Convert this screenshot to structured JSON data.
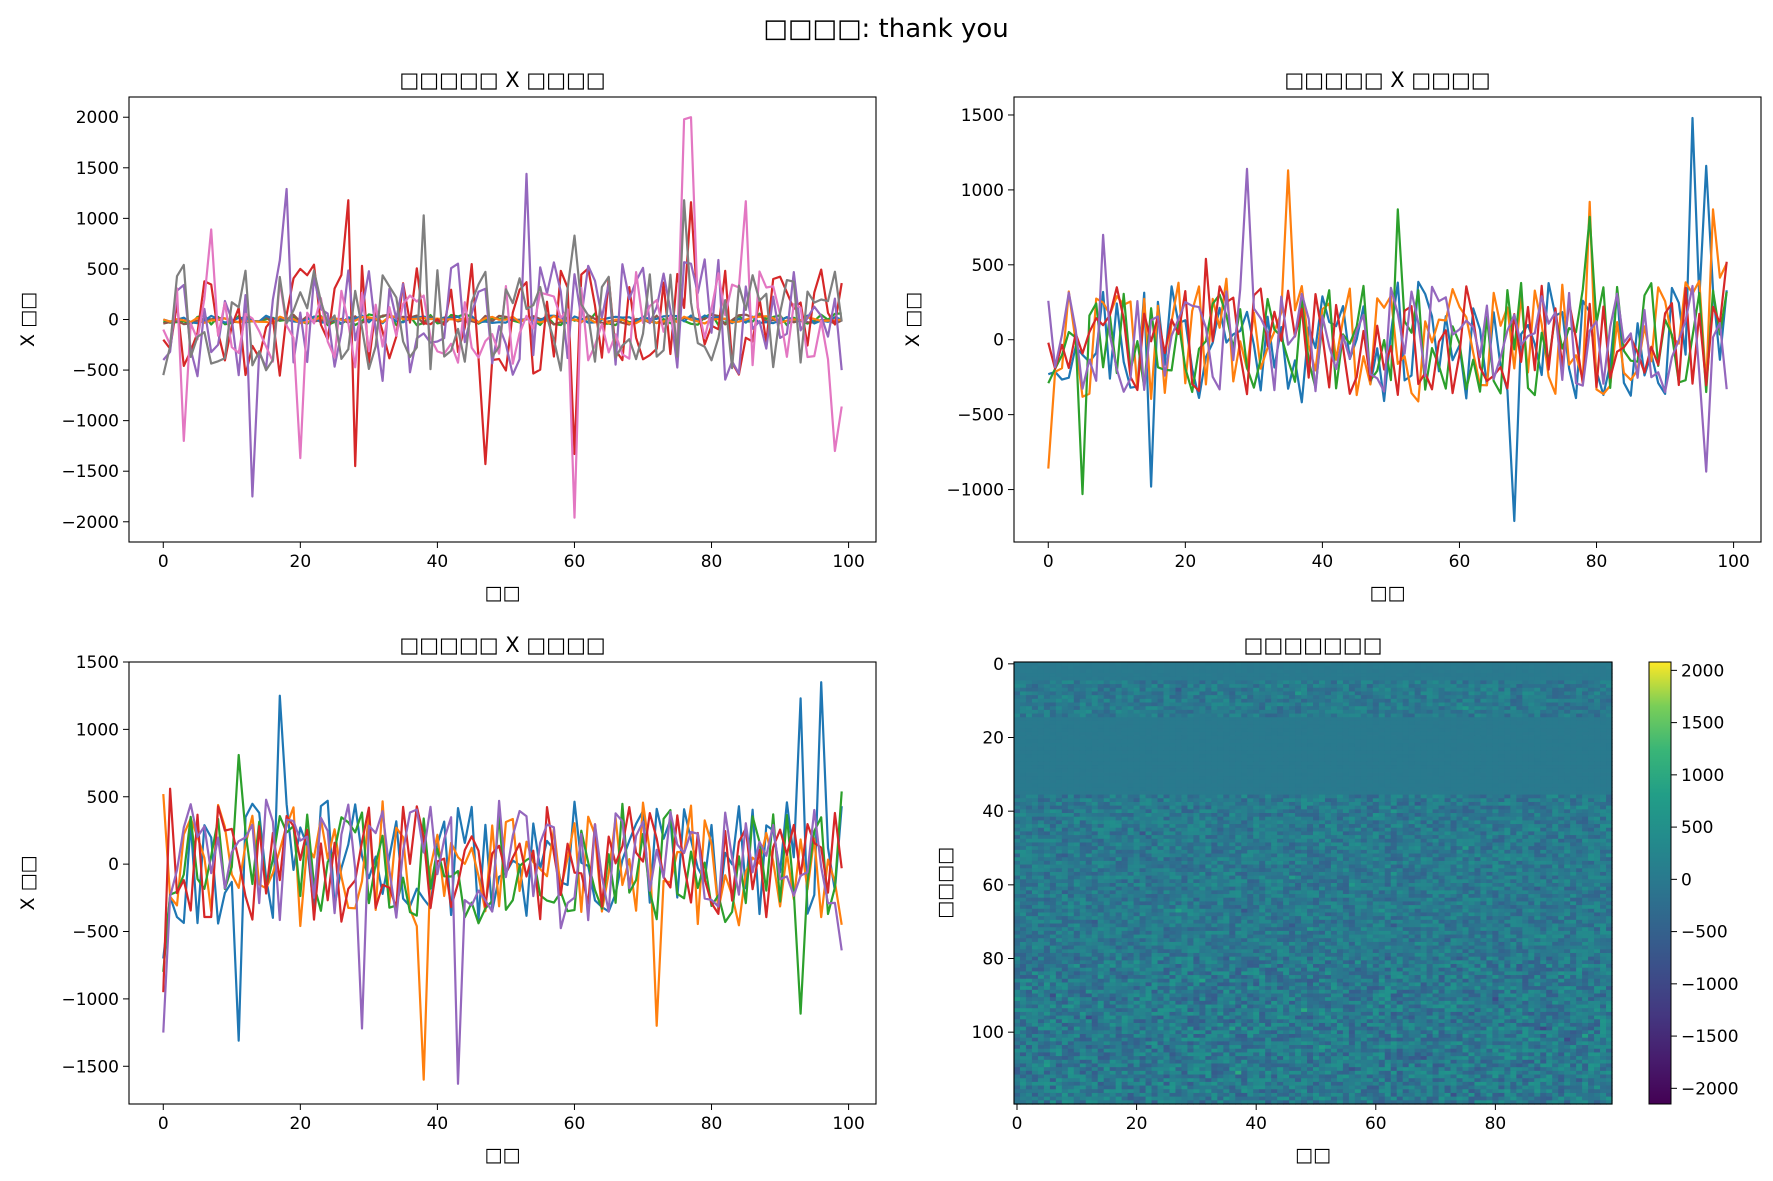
{
  "figure": {
    "suptitle": "□□□□: thank you",
    "colors": {
      "C0": "#1f77b4",
      "C1": "#ff7f0e",
      "C2": "#2ca02c",
      "C3": "#d62728",
      "C4": "#9467bd",
      "C5": "#8c564b",
      "C6": "#e377c2",
      "C7": "#7f7f7f"
    }
  },
  "chart_data": [
    {
      "type": "line",
      "title": "□□□□□ X □□□□",
      "xlabel": "□□",
      "ylabel": "X □□",
      "xlim": [
        -5,
        104
      ],
      "ylim": [
        -2200,
        2200
      ],
      "xticks": [
        0,
        20,
        40,
        60,
        80,
        100
      ],
      "yticks": [
        -2000,
        -1500,
        -1000,
        -500,
        0,
        500,
        1000,
        1500,
        2000
      ],
      "grid": false,
      "legend": "none",
      "n_points": 100,
      "series": [
        {
          "color": "#2ca02c",
          "amp": 60,
          "seed": 11,
          "anchors": [
            [
              0,
              -20
            ],
            [
              50,
              10
            ],
            [
              99,
              60
            ]
          ]
        },
        {
          "color": "#8c564b",
          "amp": 50,
          "seed": 12,
          "anchors": [
            [
              0,
              -40
            ],
            [
              60,
              0
            ],
            [
              99,
              -10
            ]
          ]
        },
        {
          "color": "#1f77b4",
          "amp": 40,
          "seed": 13,
          "anchors": [
            [
              0,
              0
            ],
            [
              99,
              0
            ]
          ]
        },
        {
          "color": "#ff7f0e",
          "amp": 40,
          "seed": 14,
          "anchors": [
            [
              0,
              0
            ],
            [
              99,
              0
            ]
          ]
        },
        {
          "color": "#d62728",
          "amp": 560,
          "seed": 15,
          "anchors": [
            [
              0,
              -200
            ],
            [
              27,
              1180
            ],
            [
              28,
              -1450
            ],
            [
              47,
              -1430
            ],
            [
              60,
              -1330
            ],
            [
              77,
              1160
            ],
            [
              99,
              360
            ]
          ]
        },
        {
          "color": "#9467bd",
          "amp": 620,
          "seed": 16,
          "anchors": [
            [
              0,
              -400
            ],
            [
              13,
              -1750
            ],
            [
              18,
              1290
            ],
            [
              53,
              1440
            ],
            [
              99,
              -500
            ]
          ]
        },
        {
          "color": "#e377c2",
          "amp": 480,
          "seed": 17,
          "anchors": [
            [
              0,
              -100
            ],
            [
              3,
              -1200
            ],
            [
              7,
              890
            ],
            [
              20,
              -1370
            ],
            [
              60,
              -1960
            ],
            [
              76,
              1980
            ],
            [
              77,
              2000
            ],
            [
              85,
              1170
            ],
            [
              98,
              -1300
            ],
            [
              99,
              -860
            ]
          ]
        },
        {
          "color": "#7f7f7f",
          "amp": 520,
          "seed": 18,
          "anchors": [
            [
              0,
              -550
            ],
            [
              3,
              540
            ],
            [
              38,
              1030
            ],
            [
              60,
              830
            ],
            [
              76,
              1180
            ],
            [
              99,
              -20
            ]
          ]
        }
      ]
    },
    {
      "type": "line",
      "title": "□□□□□ X □□□□",
      "xlabel": "□□",
      "ylabel": "X □□",
      "xlim": [
        -5,
        104
      ],
      "ylim": [
        -1350,
        1620
      ],
      "xticks": [
        0,
        20,
        40,
        60,
        80,
        100
      ],
      "yticks": [
        -1000,
        -500,
        0,
        500,
        1000,
        1500
      ],
      "grid": false,
      "legend": "none",
      "n_points": 100,
      "series": [
        {
          "color": "#1f77b4",
          "amp": 420,
          "seed": 21,
          "anchors": [
            [
              0,
              -230
            ],
            [
              15,
              -980
            ],
            [
              68,
              -1210
            ],
            [
              94,
              1480
            ],
            [
              96,
              1160
            ],
            [
              99,
              330
            ]
          ]
        },
        {
          "color": "#ff7f0e",
          "amp": 420,
          "seed": 22,
          "anchors": [
            [
              0,
              -860
            ],
            [
              35,
              1130
            ],
            [
              79,
              920
            ],
            [
              97,
              870
            ],
            [
              99,
              510
            ]
          ]
        },
        {
          "color": "#2ca02c",
          "amp": 380,
          "seed": 23,
          "anchors": [
            [
              0,
              -290
            ],
            [
              5,
              -1030
            ],
            [
              51,
              870
            ],
            [
              79,
              820
            ],
            [
              99,
              320
            ]
          ]
        },
        {
          "color": "#d62728",
          "amp": 380,
          "seed": 24,
          "anchors": [
            [
              0,
              -20
            ],
            [
              23,
              540
            ],
            [
              99,
              520
            ]
          ]
        },
        {
          "color": "#9467bd",
          "amp": 360,
          "seed": 25,
          "anchors": [
            [
              0,
              260
            ],
            [
              8,
              700
            ],
            [
              29,
              1140
            ],
            [
              96,
              -880
            ],
            [
              99,
              -330
            ]
          ]
        }
      ]
    },
    {
      "type": "line",
      "title": "□□□□□ X □□□□",
      "xlabel": "□□",
      "ylabel": "X □□",
      "xlim": [
        -5,
        104
      ],
      "ylim": [
        -1780,
        1500
      ],
      "xticks": [
        0,
        20,
        40,
        60,
        80,
        100
      ],
      "yticks": [
        -1500,
        -1000,
        -500,
        0,
        500,
        1000,
        1500
      ],
      "grid": false,
      "legend": "none",
      "n_points": 100,
      "series": [
        {
          "color": "#1f77b4",
          "amp": 480,
          "seed": 31,
          "anchors": [
            [
              0,
              -700
            ],
            [
              11,
              -1310
            ],
            [
              17,
              1250
            ],
            [
              93,
              1230
            ],
            [
              96,
              1350
            ],
            [
              99,
              430
            ]
          ]
        },
        {
          "color": "#ff7f0e",
          "amp": 480,
          "seed": 32,
          "anchors": [
            [
              0,
              520
            ],
            [
              38,
              -1600
            ],
            [
              72,
              -1200
            ],
            [
              99,
              -450
            ]
          ]
        },
        {
          "color": "#2ca02c",
          "amp": 450,
          "seed": 33,
          "anchors": [
            [
              0,
              -800
            ],
            [
              11,
              810
            ],
            [
              93,
              -1110
            ],
            [
              99,
              540
            ]
          ]
        },
        {
          "color": "#d62728",
          "amp": 430,
          "seed": 34,
          "anchors": [
            [
              0,
              -950
            ],
            [
              1,
              560
            ],
            [
              99,
              -30
            ]
          ]
        },
        {
          "color": "#9467bd",
          "amp": 480,
          "seed": 35,
          "anchors": [
            [
              0,
              -1250
            ],
            [
              29,
              -1220
            ],
            [
              43,
              -1630
            ],
            [
              99,
              -640
            ]
          ]
        }
      ]
    },
    {
      "type": "heatmap",
      "title": "□□□□□□□",
      "xlabel": "□□",
      "ylabel": "□□□□",
      "xlim": [
        -0.5,
        99.5
      ],
      "ylim": [
        119.5,
        -0.5
      ],
      "xticks": [
        0,
        20,
        40,
        60,
        80
      ],
      "yticks": [
        0,
        20,
        40,
        60,
        80,
        100
      ],
      "colormap": "viridis",
      "vmin": -2150,
      "vmax": 2080,
      "colorbar_ticks": [
        2000,
        1500,
        1000,
        500,
        0,
        -500,
        -1000,
        -1500,
        -2000
      ],
      "n_cols": 100,
      "n_rows": 120,
      "row_bands": [
        {
          "from": 0,
          "to": 4,
          "amp": 30
        },
        {
          "from": 5,
          "to": 14,
          "amp": 420
        },
        {
          "from": 15,
          "to": 35,
          "amp": 15
        },
        {
          "from": 36,
          "to": 79,
          "amp": 480
        },
        {
          "from": 80,
          "to": 119,
          "amp": 620
        }
      ]
    }
  ]
}
